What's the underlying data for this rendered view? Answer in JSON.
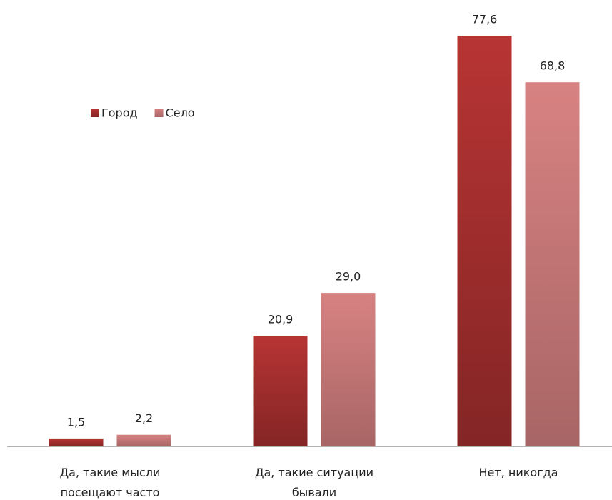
{
  "chart_data": {
    "type": "bar",
    "categories": [
      "Да, такие мысли посещают часто",
      "Да, такие ситуации бывали",
      "Нет, никогда"
    ],
    "series": [
      {
        "name": "Город",
        "color": "#b83434",
        "values": [
          1.5,
          20.9,
          77.6
        ],
        "value_labels": [
          "1,5",
          "20,9",
          "77,6"
        ]
      },
      {
        "name": "Село",
        "color": "#d88282",
        "values": [
          2.2,
          29.0,
          68.8
        ],
        "value_labels": [
          "2,2",
          "29,0",
          "68,8"
        ]
      }
    ],
    "legend": "upper left"
  }
}
